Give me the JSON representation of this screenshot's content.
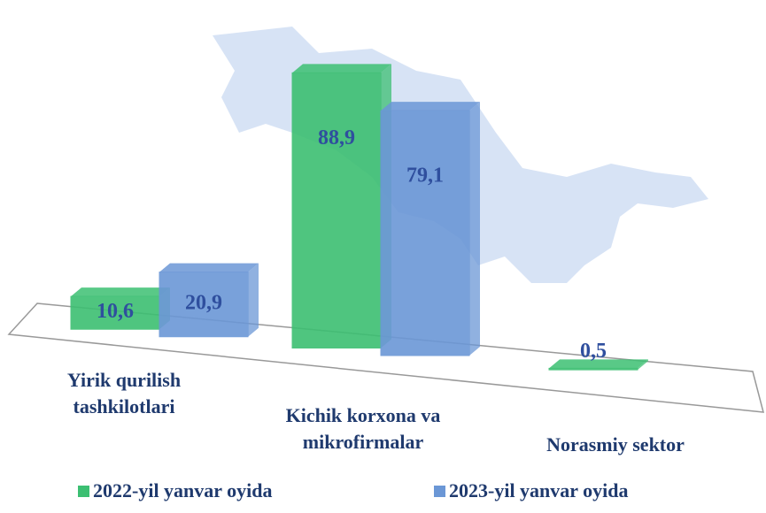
{
  "chart_data": {
    "type": "bar3d",
    "categories": [
      "Yirik qurilish tashkilotlari",
      "Kichik korxona va mikrofirmalar",
      "Norasmiy sektor"
    ],
    "series": [
      {
        "name": "2022-yil yanvar oyida",
        "color": "#3cbf72",
        "values": [
          10.6,
          88.9,
          0.5
        ],
        "value_labels": [
          "10,6",
          "88,9",
          "0,5"
        ]
      },
      {
        "name": "2023-yil yanvar oyida",
        "color": "#6b97d6",
        "values": [
          20.9,
          79.1,
          null
        ],
        "value_labels": [
          "20,9",
          "79,1",
          null
        ]
      }
    ]
  }
}
